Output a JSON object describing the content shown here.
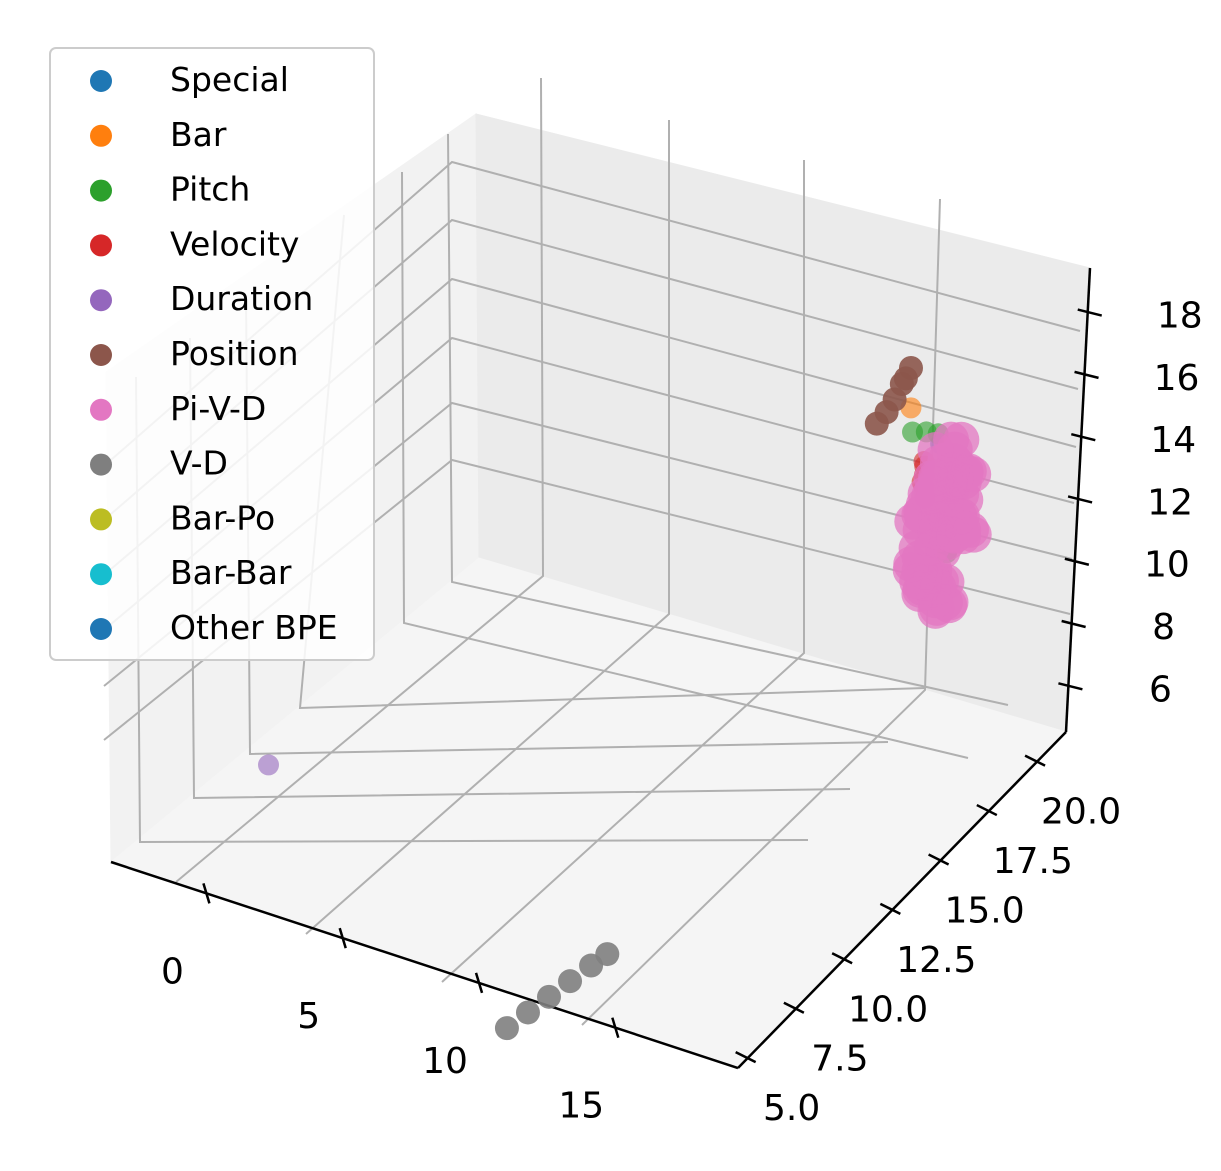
{
  "chart_data": {
    "type": "scatter",
    "projection": "3d",
    "title": "",
    "xlabel": "",
    "ylabel": "",
    "zlabel": "",
    "grid": true,
    "legend_position": "top-left",
    "x_ticks": [
      "0",
      "5",
      "10",
      "15"
    ],
    "y_ticks": [
      "5.0",
      "7.5",
      "10.0",
      "12.5",
      "15.0",
      "17.5",
      "20.0"
    ],
    "z_ticks": [
      "6",
      "8",
      "10",
      "12",
      "14",
      "16",
      "18"
    ],
    "series": [
      {
        "name": "Special",
        "color": "#1f77b4",
        "points": [
          [
            17.8,
            16.4,
            16.5
          ]
        ]
      },
      {
        "name": "Bar",
        "color": "#ff7f0e",
        "points": [
          [
            16.4,
            16.8,
            17.0
          ]
        ]
      },
      {
        "name": "Pitch",
        "color": "#2ca02c",
        "points": [
          [
            16.7,
            16.5,
            16.5
          ],
          [
            17.0,
            16.8,
            16.4
          ],
          [
            19.8,
            14.0,
            15.1
          ],
          [
            19.9,
            13.9,
            15.3
          ],
          [
            17.3,
            17.0,
            16.3
          ]
        ]
      },
      {
        "name": "Velocity",
        "color": "#d62728",
        "points": [
          [
            17.5,
            16.0,
            16.1
          ],
          [
            17.6,
            15.8,
            15.6
          ],
          [
            17.8,
            15.6,
            16.0
          ],
          [
            17.4,
            16.2,
            15.8
          ],
          [
            17.6,
            15.9,
            15.4
          ],
          [
            17.8,
            15.7,
            15.2
          ]
        ]
      },
      {
        "name": "Duration",
        "color": "#9467bd",
        "points": [
          [
            2.0,
            4.5,
            9.2
          ]
        ]
      },
      {
        "name": "Position",
        "color": "#8c564b",
        "points": [
          [
            15.8,
            17.6,
            17.6
          ],
          [
            15.7,
            17.5,
            17.3
          ],
          [
            15.5,
            17.6,
            17.0
          ],
          [
            15.4,
            17.4,
            16.6
          ],
          [
            15.2,
            17.3,
            16.2
          ],
          [
            15.0,
            17.1,
            15.9
          ]
        ]
      },
      {
        "name": "Pi-V-D",
        "color": "#e377c2",
        "points": [
          [
            18.0,
            15.5,
            15.0
          ],
          [
            18.5,
            15.0,
            14.5
          ],
          [
            19.0,
            14.5,
            14.0
          ],
          [
            18.2,
            15.3,
            13.0
          ],
          [
            18.8,
            14.8,
            12.8
          ],
          [
            19.3,
            14.4,
            13.4
          ],
          [
            18.4,
            15.8,
            16.2
          ],
          [
            19.1,
            15.2,
            15.8
          ],
          [
            19.6,
            14.6,
            16.9
          ],
          [
            20.0,
            14.2,
            17.2
          ],
          [
            17.6,
            16.4,
            14.4
          ],
          [
            18.6,
            15.6,
            17.0
          ],
          [
            19.4,
            14.8,
            15.2
          ],
          [
            17.8,
            15.9,
            12.6
          ],
          [
            18.9,
            14.9,
            16.4
          ],
          [
            19.8,
            14.0,
            16.0
          ],
          [
            18.1,
            16.0,
            15.6
          ],
          [
            19.2,
            15.6,
            14.8
          ]
        ]
      },
      {
        "name": "V-D",
        "color": "#7f7f7f",
        "points": [
          [
            13.2,
            1.3,
            6.0
          ],
          [
            13.6,
            1.8,
            6.3
          ],
          [
            14.0,
            2.3,
            6.6
          ],
          [
            14.4,
            2.8,
            6.9
          ],
          [
            14.8,
            3.3,
            7.2
          ],
          [
            15.1,
            3.7,
            7.4
          ]
        ]
      },
      {
        "name": "Bar-Po",
        "color": "#bcbd22",
        "points": []
      },
      {
        "name": "Bar-Bar",
        "color": "#17becf",
        "points": []
      },
      {
        "name": "Other BPE",
        "color": "#1f77b4",
        "points": []
      }
    ]
  }
}
